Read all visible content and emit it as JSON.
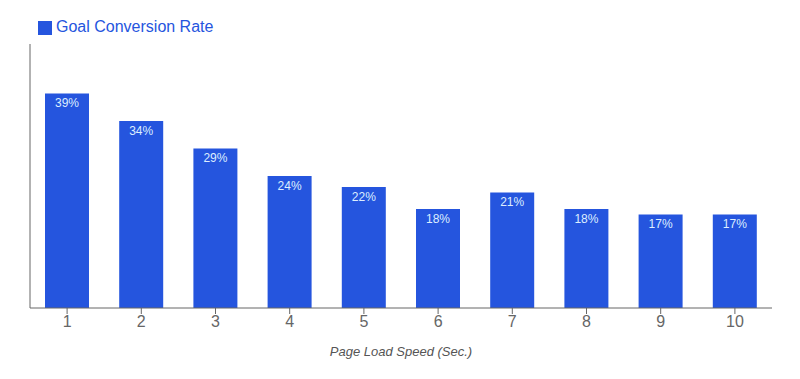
{
  "chart_data": {
    "type": "bar",
    "xlabel": "Page Load Speed (Sec.)",
    "categories": [
      1,
      2,
      3,
      4,
      5,
      6,
      7,
      8,
      9,
      10
    ],
    "series": [
      {
        "name": "Goal Conversion Rate",
        "color": "#2555DE",
        "values": [
          39,
          34,
          29,
          24,
          22,
          18,
          21,
          18,
          17,
          17
        ],
        "value_labels": [
          "39%",
          "34%",
          "29%",
          "24%",
          "22%",
          "18%",
          "21%",
          "18%",
          "17%",
          "17%"
        ]
      }
    ],
    "ylim": [
      0,
      48
    ],
    "data_labels": true,
    "tick_labels": "x",
    "grid": false,
    "legend": "upper left"
  }
}
